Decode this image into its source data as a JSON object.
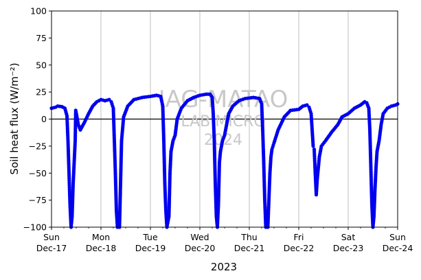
{
  "chart_data": {
    "type": "scatter",
    "title": "",
    "ylabel": "Soil heat flux (W/m⁻²)",
    "xlabel": "2023",
    "ylim": [
      -100,
      100
    ],
    "xlim": [
      "2023-12-17",
      "2023-12-24"
    ],
    "yticks": [
      "100",
      "75",
      "50",
      "25",
      "0",
      "−25",
      "−50",
      "−75",
      "−100"
    ],
    "xticks": [
      {
        "day": "Sun",
        "date": "Dec-17"
      },
      {
        "day": "Mon",
        "date": "Dec-18"
      },
      {
        "day": "Tue",
        "date": "Dec-19"
      },
      {
        "day": "Wed",
        "date": "Dec-20"
      },
      {
        "day": "Thu",
        "date": "Dec-21"
      },
      {
        "day": "Fri",
        "date": "Dec-22"
      },
      {
        "day": "Sat",
        "date": "Dec-23"
      },
      {
        "day": "Sun",
        "date": "Dec-24"
      }
    ],
    "grid": "vertical",
    "zero_line": true,
    "marker_color": "#0000ee",
    "watermark": [
      "IAG-MATAO",
      "LAB MICRO",
      "2024"
    ],
    "series": [
      {
        "name": "",
        "points": [
          [
            "2023-12-17 00:00",
            10
          ],
          [
            "2023-12-17 02:00",
            11
          ],
          [
            "2023-12-17 03:00",
            12
          ],
          [
            "2023-12-17 05:00",
            11.5
          ],
          [
            "2023-12-17 06:30",
            10
          ],
          [
            "2023-12-17 07:30",
            3
          ],
          [
            "2023-12-17 08:00",
            -20
          ],
          [
            "2023-12-17 08:30",
            -50
          ],
          [
            "2023-12-17 09:00",
            -80
          ],
          [
            "2023-12-17 09:30",
            -100
          ],
          [
            "2023-12-17 10:00",
            -90
          ],
          [
            "2023-12-17 10:30",
            -60
          ],
          [
            "2023-12-17 11:00",
            -40
          ],
          [
            "2023-12-17 11:30",
            -20
          ],
          [
            "2023-12-17 11:45",
            8
          ],
          [
            "2023-12-17 12:15",
            3
          ],
          [
            "2023-12-17 13:00",
            -5
          ],
          [
            "2023-12-17 14:00",
            -10
          ],
          [
            "2023-12-17 16:00",
            -3
          ],
          [
            "2023-12-17 18:00",
            5
          ],
          [
            "2023-12-17 20:00",
            12
          ],
          [
            "2023-12-17 22:00",
            16
          ],
          [
            "2023-12-18 00:00",
            18
          ],
          [
            "2023-12-18 02:00",
            17
          ],
          [
            "2023-12-18 04:00",
            18
          ],
          [
            "2023-12-18 05:00",
            16
          ],
          [
            "2023-12-18 06:00",
            10
          ],
          [
            "2023-12-18 06:30",
            -20
          ],
          [
            "2023-12-18 07:00",
            -50
          ],
          [
            "2023-12-18 07:30",
            -85
          ],
          [
            "2023-12-18 08:00",
            -100
          ],
          [
            "2023-12-18 09:00",
            -100
          ],
          [
            "2023-12-18 09:30",
            -60
          ],
          [
            "2023-12-18 10:00",
            -20
          ],
          [
            "2023-12-18 11:00",
            2
          ],
          [
            "2023-12-18 13:00",
            12
          ],
          [
            "2023-12-18 16:00",
            18
          ],
          [
            "2023-12-18 20:00",
            20
          ],
          [
            "2023-12-19 00:00",
            21
          ],
          [
            "2023-12-19 03:00",
            22
          ],
          [
            "2023-12-19 05:00",
            21
          ],
          [
            "2023-12-19 06:00",
            12
          ],
          [
            "2023-12-19 06:30",
            -20
          ],
          [
            "2023-12-19 07:00",
            -60
          ],
          [
            "2023-12-19 07:30",
            -85
          ],
          [
            "2023-12-19 08:00",
            -100
          ],
          [
            "2023-12-19 09:00",
            -90
          ],
          [
            "2023-12-19 09:30",
            -50
          ],
          [
            "2023-12-19 10:00",
            -30
          ],
          [
            "2023-12-19 11:00",
            -20
          ],
          [
            "2023-12-19 12:00",
            -15
          ],
          [
            "2023-12-19 13:00",
            0
          ],
          [
            "2023-12-19 15:00",
            10
          ],
          [
            "2023-12-19 18:00",
            17
          ],
          [
            "2023-12-19 21:00",
            20
          ],
          [
            "2023-12-20 00:00",
            22
          ],
          [
            "2023-12-20 03:00",
            23
          ],
          [
            "2023-12-20 05:00",
            23
          ],
          [
            "2023-12-20 06:00",
            20
          ],
          [
            "2023-12-20 06:30",
            5
          ],
          [
            "2023-12-20 07:00",
            -20
          ],
          [
            "2023-12-20 07:30",
            -60
          ],
          [
            "2023-12-20 08:00",
            -90
          ],
          [
            "2023-12-20 08:30",
            -100
          ],
          [
            "2023-12-20 09:00",
            -80
          ],
          [
            "2023-12-20 09:30",
            -40
          ],
          [
            "2023-12-20 10:00",
            -30
          ],
          [
            "2023-12-20 11:00",
            -20
          ],
          [
            "2023-12-20 12:00",
            -15
          ],
          [
            "2023-12-20 14:00",
            5
          ],
          [
            "2023-12-20 16:00",
            12
          ],
          [
            "2023-12-20 19:00",
            17
          ],
          [
            "2023-12-20 22:00",
            19
          ],
          [
            "2023-12-21 02:00",
            20
          ],
          [
            "2023-12-21 05:00",
            19
          ],
          [
            "2023-12-21 06:00",
            14
          ],
          [
            "2023-12-21 06:30",
            -10
          ],
          [
            "2023-12-21 07:00",
            -40
          ],
          [
            "2023-12-21 07:30",
            -75
          ],
          [
            "2023-12-21 08:00",
            -100
          ],
          [
            "2023-12-21 09:00",
            -100
          ],
          [
            "2023-12-21 09:30",
            -75
          ],
          [
            "2023-12-21 10:00",
            -50
          ],
          [
            "2023-12-21 10:30",
            -35
          ],
          [
            "2023-12-21 11:00",
            -28
          ],
          [
            "2023-12-21 12:00",
            -22
          ],
          [
            "2023-12-21 14:00",
            -10
          ],
          [
            "2023-12-21 17:00",
            2
          ],
          [
            "2023-12-21 20:00",
            8
          ],
          [
            "2023-12-22 00:00",
            9
          ],
          [
            "2023-12-22 02:00",
            12
          ],
          [
            "2023-12-22 04:00",
            13
          ],
          [
            "2023-12-22 05:00",
            11
          ],
          [
            "2023-12-22 06:00",
            5
          ],
          [
            "2023-12-22 06:30",
            -10
          ],
          [
            "2023-12-22 07:00",
            -25
          ],
          [
            "2023-12-22 07:30",
            -28
          ],
          [
            "2023-12-22 08:00",
            -50
          ],
          [
            "2023-12-22 08:30",
            -70
          ],
          [
            "2023-12-22 09:00",
            -55
          ],
          [
            "2023-12-22 10:00",
            -35
          ],
          [
            "2023-12-22 11:00",
            -25
          ],
          [
            "2023-12-22 13:00",
            -20
          ],
          [
            "2023-12-22 16:00",
            -12
          ],
          [
            "2023-12-22 19:00",
            -5
          ],
          [
            "2023-12-22 21:00",
            2
          ],
          [
            "2023-12-23 00:00",
            5
          ],
          [
            "2023-12-23 03:00",
            10
          ],
          [
            "2023-12-23 06:00",
            13
          ],
          [
            "2023-12-23 08:00",
            16
          ],
          [
            "2023-12-23 09:00",
            15
          ],
          [
            "2023-12-23 10:00",
            10
          ],
          [
            "2023-12-23 10:30",
            -10
          ],
          [
            "2023-12-23 11:00",
            -45
          ],
          [
            "2023-12-23 11:30",
            -80
          ],
          [
            "2023-12-23 12:00",
            -100
          ],
          [
            "2023-12-23 12:30",
            -90
          ],
          [
            "2023-12-23 13:00",
            -65
          ],
          [
            "2023-12-23 13:30",
            -45
          ],
          [
            "2023-12-23 14:00",
            -30
          ],
          [
            "2023-12-23 15:00",
            -20
          ],
          [
            "2023-12-23 16:00",
            -5
          ],
          [
            "2023-12-23 17:00",
            5
          ],
          [
            "2023-12-23 19:00",
            10
          ],
          [
            "2023-12-23 21:00",
            12
          ],
          [
            "2023-12-23 23:00",
            13
          ],
          [
            "2023-12-24 00:00",
            14
          ]
        ]
      }
    ]
  }
}
